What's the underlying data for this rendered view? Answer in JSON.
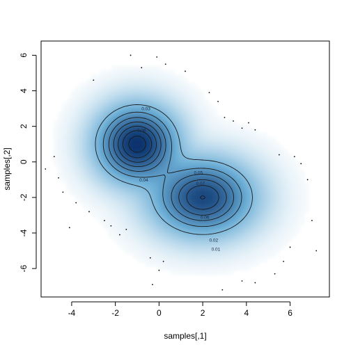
{
  "chart_data": {
    "type": "heatmap",
    "subtype": "smoothed-density-scatter-with-contours",
    "title": "",
    "xlabel": "samples[,1]",
    "ylabel": "samples[,2]",
    "xlim": [
      -5.4,
      7.8
    ],
    "ylim": [
      -7.6,
      6.8
    ],
    "x_ticks": [
      -4,
      -2,
      0,
      2,
      4,
      6
    ],
    "y_ticks": [
      -6,
      -4,
      -2,
      0,
      2,
      4,
      6
    ],
    "x_tick_labels": [
      "-4",
      "-2",
      "0",
      "2",
      "4",
      "6"
    ],
    "y_tick_labels": [
      "-6",
      "-4",
      "-2",
      "0",
      "2",
      "4",
      "6"
    ],
    "grid": false,
    "colors": {
      "density_high": "#08306b",
      "density_low": "#c6dbef",
      "contour": "#1a1a1a",
      "background": "#ffffff"
    },
    "components": [
      {
        "mean": [
          -1.0,
          1.0
        ],
        "sd": [
          0.95,
          1.1
        ],
        "weight": 0.5
      },
      {
        "mean": [
          2.0,
          -2.0
        ],
        "sd": [
          1.2,
          1.1
        ],
        "weight": 0.5
      }
    ],
    "contour_levels": [
      0.01,
      0.02,
      0.03,
      0.04,
      0.05,
      0.06,
      0.07,
      0.08,
      0.09
    ],
    "contour_labels": [
      {
        "text": "0.01",
        "at": [
          2.6,
          -4.9
        ]
      },
      {
        "text": "0.02",
        "at": [
          2.5,
          -4.4
        ]
      },
      {
        "text": "0.03",
        "at": [
          -0.6,
          3.0
        ]
      },
      {
        "text": "0.04",
        "at": [
          -0.7,
          -1.0
        ]
      },
      {
        "text": "0.05",
        "at": [
          1.8,
          -0.6
        ]
      },
      {
        "text": "0.06",
        "at": [
          2.1,
          -3.1
        ]
      },
      {
        "text": "0.07",
        "at": [
          1.9,
          -1.2
        ]
      },
      {
        "text": "0.08",
        "at": [
          -0.8,
          1.8
        ]
      }
    ],
    "outlier_points": [
      [
        -5.2,
        -0.4
      ],
      [
        -4.8,
        0.3
      ],
      [
        -4.6,
        -0.9
      ],
      [
        -4.4,
        -1.7
      ],
      [
        -4.1,
        -3.7
      ],
      [
        -3.8,
        -2.3
      ],
      [
        -3.2,
        -2.8
      ],
      [
        -2.5,
        -3.3
      ],
      [
        -2.2,
        -3.6
      ],
      [
        -1.8,
        -4.1
      ],
      [
        -1.5,
        -3.8
      ],
      [
        -1.3,
        6.0
      ],
      [
        -0.8,
        5.3
      ],
      [
        -0.4,
        -5.4
      ],
      [
        0.0,
        -6.1
      ],
      [
        0.2,
        -5.6
      ],
      [
        -0.1,
        5.9
      ],
      [
        0.3,
        5.5
      ],
      [
        1.2,
        5.1
      ],
      [
        2.3,
        3.9
      ],
      [
        2.7,
        3.4
      ],
      [
        3.0,
        2.5
      ],
      [
        3.4,
        2.3
      ],
      [
        3.8,
        1.9
      ],
      [
        4.1,
        2.2
      ],
      [
        4.4,
        1.8
      ],
      [
        5.5,
        0.4
      ],
      [
        6.2,
        0.3
      ],
      [
        6.5,
        -0.1
      ],
      [
        6.8,
        -1.0
      ],
      [
        7.0,
        -3.3
      ],
      [
        7.2,
        -5.0
      ],
      [
        5.7,
        -5.6
      ],
      [
        5.3,
        -6.3
      ],
      [
        4.4,
        -6.8
      ],
      [
        3.8,
        -6.7
      ],
      [
        2.9,
        -7.2
      ],
      [
        -3.0,
        4.6
      ],
      [
        -0.3,
        -6.9
      ],
      [
        6.0,
        -4.8
      ]
    ]
  }
}
